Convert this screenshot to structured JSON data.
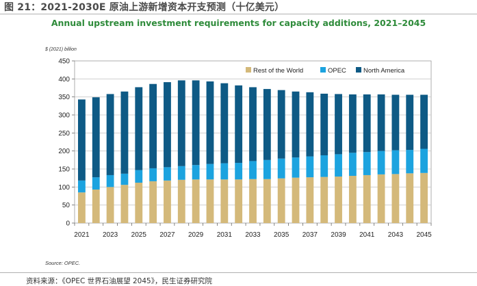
{
  "figure_title": "图 21：2021-2030E 原油上游新增资本开支预测（十亿美元）",
  "chart_title": "Annual upstream investment requirements for capacity additions, 2021–2045",
  "y_unit_label": "$ (2021) billion",
  "source": "Source: OPEC.",
  "footer": "资料来源：《OPEC 世界石油展望 2045》，民生证券研究院",
  "colors": {
    "rest_of_world": "#d4b97a",
    "opec": "#1ca3df",
    "north_america": "#0e5a85",
    "title": "#2e8b3a"
  },
  "chart_data": {
    "type": "bar",
    "stacked": true,
    "categories": [
      "2021",
      "2022",
      "2023",
      "2024",
      "2025",
      "2026",
      "2027",
      "2028",
      "2029",
      "2030",
      "2031",
      "2032",
      "2033",
      "2034",
      "2035",
      "2036",
      "2037",
      "2038",
      "2039",
      "2040",
      "2041",
      "2042",
      "2043",
      "2044",
      "2045"
    ],
    "x_tick_labels": [
      "2021",
      "2023",
      "2025",
      "2027",
      "2029",
      "2031",
      "2033",
      "2035",
      "2037",
      "2039",
      "2041",
      "2043",
      "2045"
    ],
    "series": [
      {
        "name": "Rest of the World",
        "color": "#d4b97a",
        "values": [
          85,
          93,
          100,
          106,
          112,
          116,
          118,
          120,
          121,
          121,
          121,
          121,
          122,
          122,
          124,
          126,
          127,
          128,
          129,
          131,
          133,
          135,
          136,
          138,
          139
        ]
      },
      {
        "name": "OPEC",
        "color": "#1ca3df",
        "values": [
          33,
          34,
          33,
          31,
          35,
          36,
          37,
          38,
          40,
          43,
          45,
          46,
          50,
          53,
          55,
          56,
          58,
          60,
          62,
          64,
          64,
          65,
          66,
          65,
          67
        ]
      },
      {
        "name": "North America",
        "color": "#0e5a85",
        "values": [
          225,
          222,
          225,
          228,
          230,
          234,
          236,
          238,
          235,
          229,
          222,
          215,
          205,
          197,
          190,
          183,
          178,
          171,
          167,
          162,
          160,
          157,
          154,
          153,
          150
        ]
      }
    ],
    "ylim": [
      0,
      450
    ],
    "yticks": [
      0,
      50,
      100,
      150,
      200,
      250,
      300,
      350,
      400,
      450
    ],
    "ylabel": "$ (2021) billion",
    "xlabel": "",
    "grid": true,
    "legend": [
      "Rest of the World",
      "OPEC",
      "North America"
    ],
    "legend_position": "top-right"
  }
}
